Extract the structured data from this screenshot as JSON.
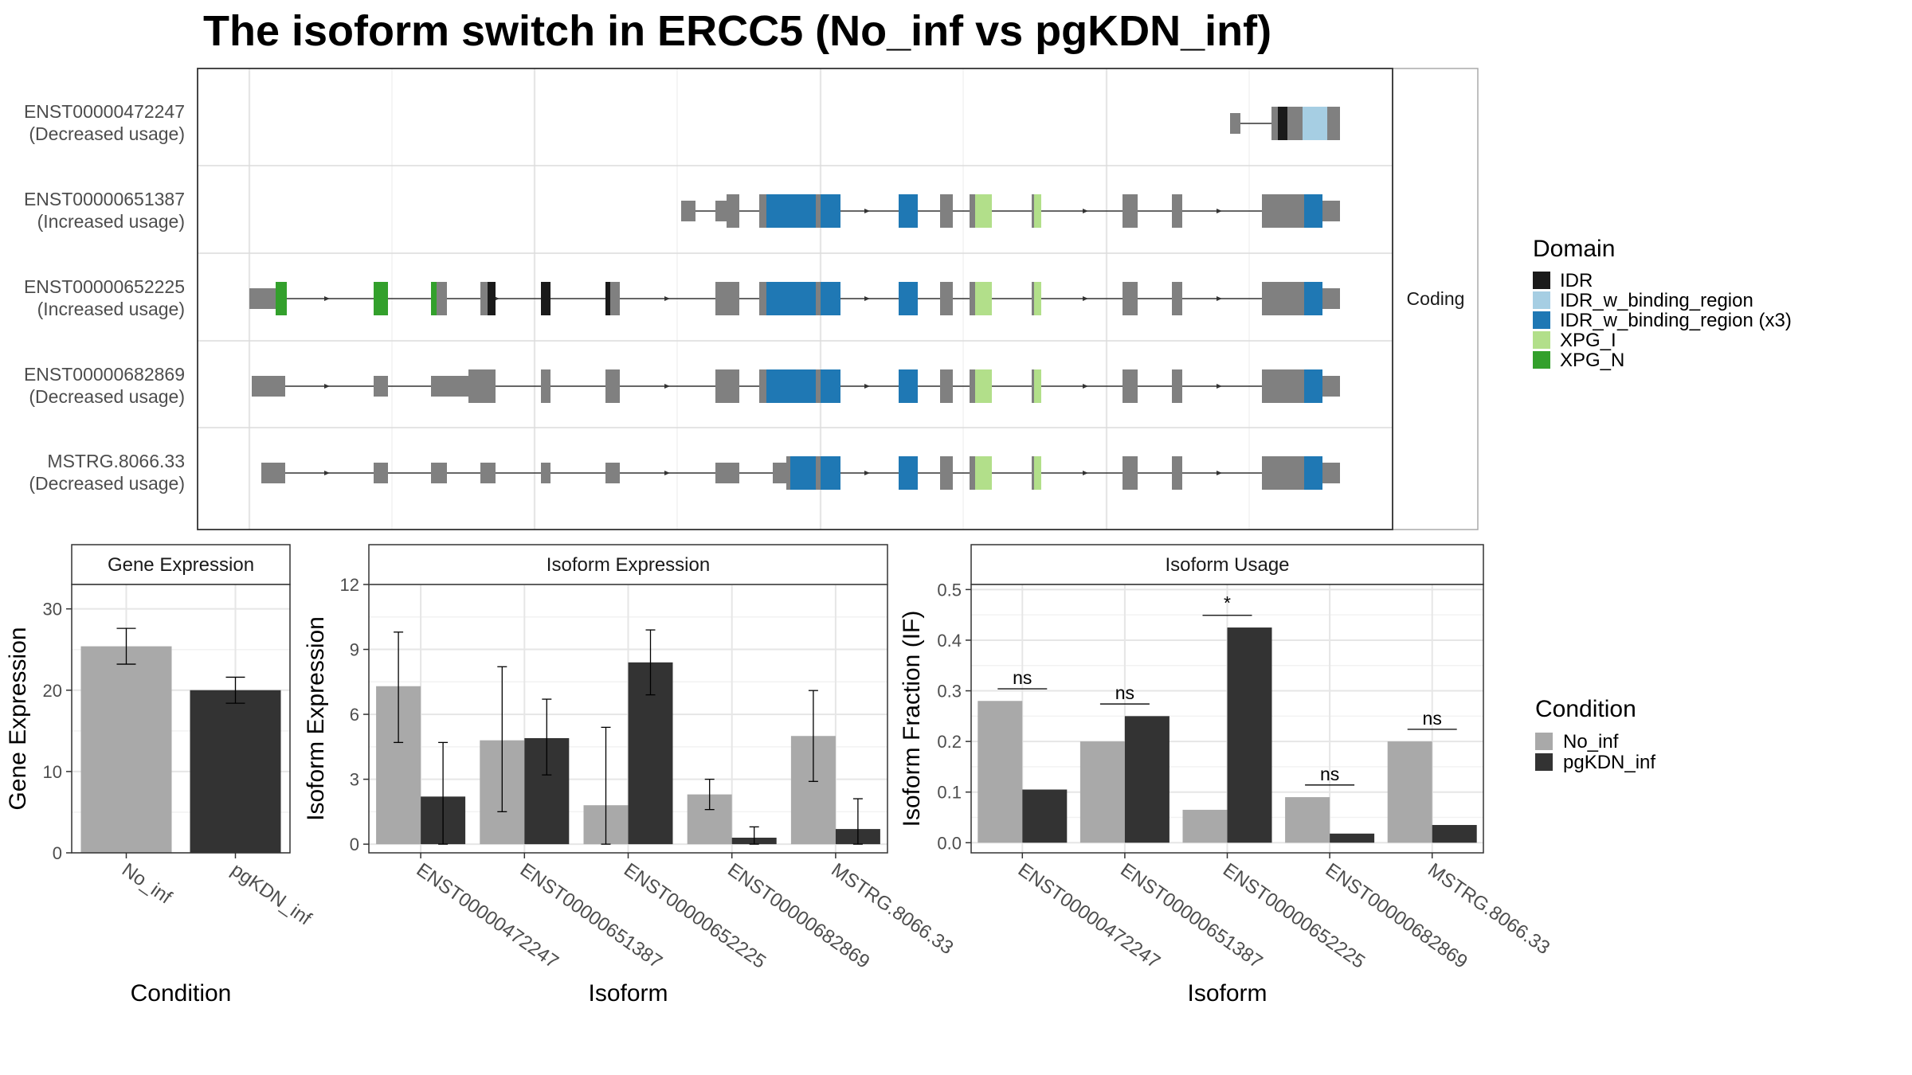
{
  "title": "The isoform switch in ERCC5 (No_inf vs pgKDN_inf)",
  "structure_panel": {
    "strip_label": "Coding",
    "transcripts": [
      {
        "id": "ENST00000472247",
        "usage": "(Decreased usage)"
      },
      {
        "id": "ENST00000651387",
        "usage": "(Increased usage)"
      },
      {
        "id": "ENST00000652225",
        "usage": "(Increased usage)"
      },
      {
        "id": "ENST00000682869",
        "usage": "(Decreased usage)"
      },
      {
        "id": "MSTRG.8066.33",
        "usage": "(Decreased usage)"
      }
    ],
    "domain_legend": {
      "title": "Domain",
      "entries": [
        {
          "name": "IDR",
          "color": "#1a1a1a"
        },
        {
          "name": "IDR_w_binding_region",
          "color": "#a6cee3"
        },
        {
          "name": "IDR_w_binding_region (x3)",
          "color": "#1f78b4"
        },
        {
          "name": "XPG_I",
          "color": "#b2df8a"
        },
        {
          "name": "XPG_N",
          "color": "#33a02c"
        }
      ]
    }
  },
  "condition_legend": {
    "title": "Condition",
    "entries": [
      {
        "name": "No_inf",
        "color": "#a9a9a9"
      },
      {
        "name": "pgKDN_inf",
        "color": "#333333"
      }
    ]
  },
  "chart_data": [
    {
      "type": "bar",
      "title": "Gene Expression",
      "xlabel": "Condition",
      "ylabel": "Gene Expression",
      "categories": [
        "No_inf",
        "pgKDN_inf"
      ],
      "values": [
        25.4,
        20.0
      ],
      "error_low": [
        23.2,
        18.4
      ],
      "error_high": [
        27.6,
        21.6
      ],
      "ylim": [
        0,
        33
      ],
      "yticks": [
        0,
        10,
        20,
        30
      ],
      "colors": [
        "#a9a9a9",
        "#333333"
      ]
    },
    {
      "type": "bar",
      "title": "Isoform Expression",
      "xlabel": "Isoform",
      "ylabel": "Isoform Expression",
      "categories": [
        "ENST00000472247",
        "ENST00000651387",
        "ENST00000652225",
        "ENST00000682869",
        "MSTRG.8066.33"
      ],
      "series": [
        {
          "name": "No_inf",
          "values": [
            7.3,
            4.8,
            1.8,
            2.3,
            5.0
          ],
          "error_low": [
            4.7,
            1.5,
            0.0,
            1.6,
            2.9
          ],
          "error_high": [
            9.8,
            8.2,
            5.4,
            3.0,
            7.1
          ]
        },
        {
          "name": "pgKDN_inf",
          "values": [
            2.2,
            4.9,
            8.4,
            0.3,
            0.7
          ],
          "error_low": [
            0.0,
            3.2,
            6.9,
            0.0,
            0.0
          ],
          "error_high": [
            4.7,
            6.7,
            9.9,
            0.8,
            2.1
          ]
        }
      ],
      "ylim": [
        -0.4,
        12
      ],
      "yticks": [
        0,
        3,
        6,
        9,
        12
      ],
      "colors": [
        "#a9a9a9",
        "#333333"
      ]
    },
    {
      "type": "bar",
      "title": "Isoform Usage",
      "xlabel": "Isoform",
      "ylabel": "Isoform Fraction (IF)",
      "categories": [
        "ENST00000472247",
        "ENST00000651387",
        "ENST00000652225",
        "ENST00000682869",
        "MSTRG.8066.33"
      ],
      "series": [
        {
          "name": "No_inf",
          "values": [
            0.28,
            0.2,
            0.065,
            0.09,
            0.2
          ]
        },
        {
          "name": "pgKDN_inf",
          "values": [
            0.105,
            0.25,
            0.425,
            0.018,
            0.035
          ]
        }
      ],
      "significance": [
        "ns",
        "ns",
        "*",
        "ns",
        "ns"
      ],
      "ylim": [
        -0.02,
        0.51
      ],
      "yticks": [
        0.0,
        0.1,
        0.2,
        0.3,
        0.4,
        0.5
      ],
      "colors": [
        "#a9a9a9",
        "#333333"
      ]
    }
  ]
}
